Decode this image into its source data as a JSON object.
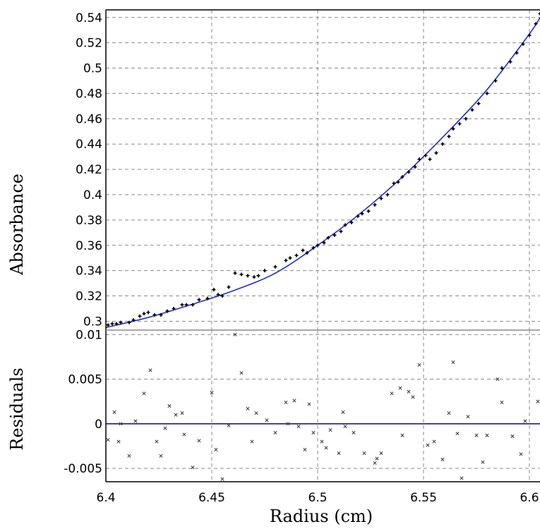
{
  "chart_data": [
    {
      "type": "scatter",
      "panel": "top",
      "ylabel": "Absorbance",
      "xlim": [
        6.4,
        6.605
      ],
      "ylim": [
        0.293,
        0.546
      ],
      "x_ticks": [
        "6.4",
        "6.45",
        "6.5",
        "6.55",
        "6.6"
      ],
      "y_ticks": [
        "0.3",
        "0.32",
        "0.34",
        "0.36",
        "0.38",
        "0.4",
        "0.42",
        "0.44",
        "0.46",
        "0.48",
        "0.5",
        "0.52",
        "0.54"
      ],
      "grid": true,
      "colors": {
        "points": "#000000",
        "fit": "#1f2de0"
      },
      "series": [
        {
          "kind": "points",
          "points": [
            [
              6.401,
              0.297
            ],
            [
              6.403,
              0.298
            ],
            [
              6.405,
              0.298
            ],
            [
              6.407,
              0.299
            ],
            [
              6.411,
              0.299
            ],
            [
              6.413,
              0.301
            ],
            [
              6.416,
              0.304
            ],
            [
              6.418,
              0.306
            ],
            [
              6.42,
              0.307
            ],
            [
              6.423,
              0.305
            ],
            [
              6.426,
              0.305
            ],
            [
              6.429,
              0.308
            ],
            [
              6.432,
              0.31
            ],
            [
              6.436,
              0.313
            ],
            [
              6.438,
              0.313
            ],
            [
              6.441,
              0.313
            ],
            [
              6.444,
              0.317
            ],
            [
              6.448,
              0.318
            ],
            [
              6.451,
              0.325
            ],
            [
              6.453,
              0.321
            ],
            [
              6.455,
              0.32
            ],
            [
              6.458,
              0.327
            ],
            [
              6.461,
              0.338
            ],
            [
              6.464,
              0.337
            ],
            [
              6.467,
              0.336
            ],
            [
              6.47,
              0.335
            ],
            [
              6.472,
              0.336
            ],
            [
              6.475,
              0.34
            ],
            [
              6.48,
              0.343
            ],
            [
              6.485,
              0.348
            ],
            [
              6.487,
              0.35
            ],
            [
              6.49,
              0.352
            ],
            [
              6.493,
              0.356
            ],
            [
              6.495,
              0.354
            ],
            [
              6.498,
              0.358
            ],
            [
              6.5,
              0.36
            ],
            [
              6.503,
              0.362
            ],
            [
              6.505,
              0.366
            ],
            [
              6.508,
              0.368
            ],
            [
              6.511,
              0.371
            ],
            [
              6.513,
              0.376
            ],
            [
              6.516,
              0.378
            ],
            [
              6.519,
              0.383
            ],
            [
              6.521,
              0.385
            ],
            [
              6.524,
              0.387
            ],
            [
              6.527,
              0.392
            ],
            [
              6.53,
              0.397
            ],
            [
              6.533,
              0.4
            ],
            [
              6.536,
              0.409
            ],
            [
              6.538,
              0.41
            ],
            [
              6.54,
              0.414
            ],
            [
              6.543,
              0.418
            ],
            [
              6.546,
              0.422
            ],
            [
              6.548,
              0.428
            ],
            [
              6.551,
              0.431
            ],
            [
              6.553,
              0.428
            ],
            [
              6.556,
              0.433
            ],
            [
              6.559,
              0.44
            ],
            [
              6.562,
              0.446
            ],
            [
              6.564,
              0.452
            ],
            [
              6.567,
              0.456
            ],
            [
              6.57,
              0.46
            ],
            [
              6.573,
              0.467
            ],
            [
              6.576,
              0.472
            ],
            [
              6.58,
              0.48
            ],
            [
              6.584,
              0.49
            ],
            [
              6.587,
              0.5
            ],
            [
              6.591,
              0.505
            ],
            [
              6.594,
              0.512
            ],
            [
              6.597,
              0.519
            ],
            [
              6.6,
              0.526
            ],
            [
              6.603,
              0.535
            ],
            [
              6.605,
              0.543
            ]
          ]
        },
        {
          "kind": "fit",
          "points": [
            [
              6.4,
              0.295
            ],
            [
              6.42,
              0.303
            ],
            [
              6.44,
              0.313
            ],
            [
              6.46,
              0.324
            ],
            [
              6.48,
              0.338
            ],
            [
              6.5,
              0.36
            ],
            [
              6.52,
              0.385
            ],
            [
              6.54,
              0.414
            ],
            [
              6.56,
              0.447
            ],
            [
              6.58,
              0.483
            ],
            [
              6.6,
              0.527
            ],
            [
              6.605,
              0.54
            ]
          ]
        }
      ]
    },
    {
      "type": "scatter",
      "panel": "bottom",
      "ylabel": "Residuals",
      "xlabel": "Radius (cm)",
      "xlim": [
        6.4,
        6.605
      ],
      "ylim": [
        -0.0065,
        0.0105
      ],
      "x_ticks": [
        "6.4",
        "6.45",
        "6.5",
        "6.55",
        "6.6"
      ],
      "y_ticks": [
        "0.01",
        "0.005",
        "0",
        "-0.005"
      ],
      "grid": true,
      "colors": {
        "points": "#000000",
        "zero_line": "#1a1a9e"
      },
      "series": [
        {
          "kind": "points",
          "points": [
            [
              6.401,
              -0.0018
            ],
            [
              6.404,
              0.0013
            ],
            [
              6.406,
              -0.002
            ],
            [
              6.407,
              0.0
            ],
            [
              6.411,
              -0.0036
            ],
            [
              6.414,
              0.0003
            ],
            [
              6.418,
              0.0034
            ],
            [
              6.421,
              0.006
            ],
            [
              6.424,
              -0.002
            ],
            [
              6.426,
              -0.0036
            ],
            [
              6.428,
              -0.0005
            ],
            [
              6.43,
              0.002
            ],
            [
              6.433,
              0.001
            ],
            [
              6.436,
              0.0012
            ],
            [
              6.437,
              -0.0012
            ],
            [
              6.441,
              -0.0049
            ],
            [
              6.444,
              -0.0019
            ],
            [
              6.45,
              0.0035
            ],
            [
              6.452,
              -0.0029
            ],
            [
              6.455,
              -0.0062
            ],
            [
              6.458,
              -0.0002
            ],
            [
              6.461,
              0.01
            ],
            [
              6.464,
              0.0057
            ],
            [
              6.467,
              0.0017
            ],
            [
              6.469,
              -0.002
            ],
            [
              6.471,
              0.0012
            ],
            [
              6.476,
              0.0004
            ],
            [
              6.48,
              -0.001
            ],
            [
              6.485,
              0.0024
            ],
            [
              6.486,
              -0.0
            ],
            [
              6.489,
              0.0026
            ],
            [
              6.491,
              -0.0003
            ],
            [
              6.494,
              -0.0029
            ],
            [
              6.496,
              0.0022
            ],
            [
              6.498,
              -0.001
            ],
            [
              6.502,
              -0.002
            ],
            [
              6.504,
              -0.0027
            ],
            [
              6.506,
              -0.0007
            ],
            [
              6.51,
              -0.0033
            ],
            [
              6.512,
              0.0013
            ],
            [
              6.513,
              -0.0003
            ],
            [
              6.517,
              -0.001
            ],
            [
              6.522,
              -0.0033
            ],
            [
              6.527,
              -0.0044
            ],
            [
              6.528,
              -0.0039
            ],
            [
              6.53,
              -0.0033
            ],
            [
              6.535,
              0.0034
            ],
            [
              6.539,
              0.004
            ],
            [
              6.54,
              -0.0013
            ],
            [
              6.543,
              0.0036
            ],
            [
              6.545,
              0.003
            ],
            [
              6.548,
              0.0066
            ],
            [
              6.552,
              -0.0024
            ],
            [
              6.555,
              -0.002
            ],
            [
              6.559,
              -0.004
            ],
            [
              6.562,
              0.0012
            ],
            [
              6.564,
              0.0069
            ],
            [
              6.566,
              -0.0011
            ],
            [
              6.568,
              -0.0061
            ],
            [
              6.571,
              0.0008
            ],
            [
              6.575,
              -0.0013
            ],
            [
              6.578,
              -0.0043
            ],
            [
              6.58,
              -0.0013
            ],
            [
              6.585,
              0.005
            ],
            [
              6.587,
              0.0024
            ],
            [
              6.592,
              -0.0014
            ],
            [
              6.596,
              -0.0034
            ],
            [
              6.598,
              0.0003
            ],
            [
              6.604,
              0.0025
            ]
          ]
        }
      ]
    }
  ]
}
